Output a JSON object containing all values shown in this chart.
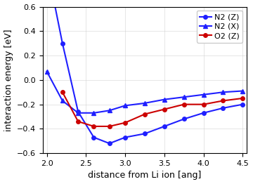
{
  "N2_Z_x": [
    2.1,
    2.2,
    2.4,
    2.6,
    2.8,
    3.0,
    3.25,
    3.5,
    3.75,
    4.0,
    4.25,
    4.5
  ],
  "N2_Z_y": [
    0.62,
    0.3,
    -0.26,
    -0.47,
    -0.52,
    -0.47,
    -0.44,
    -0.38,
    -0.32,
    -0.27,
    -0.23,
    -0.2
  ],
  "N2_X_x": [
    2.0,
    2.2,
    2.4,
    2.6,
    2.8,
    3.0,
    3.25,
    3.5,
    3.75,
    4.0,
    4.25,
    4.5
  ],
  "N2_X_y": [
    0.07,
    -0.17,
    -0.27,
    -0.27,
    -0.25,
    -0.21,
    -0.19,
    -0.16,
    -0.14,
    -0.12,
    -0.1,
    -0.09
  ],
  "O2_Z_x": [
    2.2,
    2.4,
    2.6,
    2.8,
    3.0,
    3.25,
    3.5,
    3.75,
    4.0,
    4.25,
    4.5
  ],
  "O2_Z_y": [
    -0.1,
    -0.34,
    -0.38,
    -0.38,
    -0.35,
    -0.28,
    -0.24,
    -0.2,
    -0.2,
    -0.17,
    -0.15
  ],
  "color_N2": "#1f1fff",
  "color_O2": "#cc0000",
  "xlabel": "distance from Li ion [ang]",
  "ylabel": "interaction energy [eV]",
  "xlim": [
    1.95,
    4.55
  ],
  "ylim": [
    -0.6,
    0.6
  ],
  "yticks": [
    -0.6,
    -0.4,
    -0.2,
    0.0,
    0.2,
    0.4,
    0.6
  ],
  "xticks": [
    2.0,
    2.5,
    3.0,
    3.5,
    4.0,
    4.5
  ],
  "figwidth": 3.6,
  "figheight": 2.62,
  "dpi": 100
}
